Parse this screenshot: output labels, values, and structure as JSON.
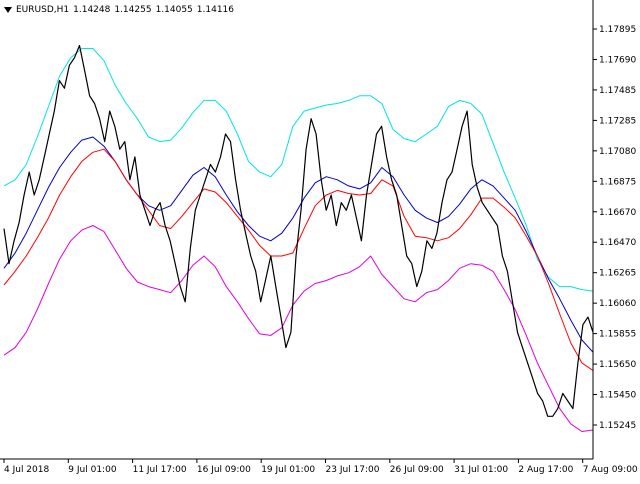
{
  "header": {
    "symbol": "EURUSD,H1",
    "open": "1.14248",
    "high": "1.14255",
    "low": "1.14055",
    "close": "1.14116"
  },
  "colors": {
    "price": "#000000",
    "ma": "#ff0000",
    "band_mid": "#0000cc",
    "band_upper": "#00e5e5",
    "band_lower": "#e000e0",
    "axis": "#000000",
    "background": "#ffffff"
  },
  "chart_data": {
    "type": "line",
    "ylim": [
      1.1517,
      1.1806
    ],
    "y_ticks": [
      "1.17895",
      "1.17690",
      "1.17485",
      "1.17285",
      "1.17080",
      "1.16875",
      "1.16670",
      "1.16470",
      "1.16265",
      "1.16060",
      "1.15855",
      "1.15650",
      "1.15450",
      "1.15245"
    ],
    "x_ticks": [
      "4 Jul 2018",
      "9 Jul 01:00",
      "11 Jul 17:00",
      "16 Jul 09:00",
      "19 Jul 01:00",
      "23 Jul 17:00",
      "26 Jul 09:00",
      "31 Jul 01:00",
      "2 Aug 17:00",
      "7 Aug 09:00"
    ],
    "series": [
      {
        "key": "price",
        "values": [
          1.1668,
          1.1645,
          1.166,
          1.1672,
          1.169,
          1.1705,
          1.169,
          1.17,
          1.1715,
          1.173,
          1.1745,
          1.1765,
          1.176,
          1.1775,
          1.178,
          1.1788,
          1.1772,
          1.1755,
          1.175,
          1.174,
          1.1725,
          1.1745,
          1.1735,
          1.172,
          1.1725,
          1.17,
          1.1715,
          1.169,
          1.168,
          1.167,
          1.168,
          1.1685,
          1.167,
          1.166,
          1.1645,
          1.163,
          1.162,
          1.1655,
          1.168,
          1.169,
          1.17,
          1.171,
          1.1705,
          1.1715,
          1.173,
          1.1725,
          1.17,
          1.168,
          1.1665,
          1.165,
          1.164,
          1.162,
          1.1635,
          1.165,
          1.163,
          1.161,
          1.159,
          1.16,
          1.165,
          1.168,
          1.172,
          1.174,
          1.173,
          1.17,
          1.168,
          1.169,
          1.167,
          1.1685,
          1.168,
          1.169,
          1.1675,
          1.166,
          1.169,
          1.171,
          1.173,
          1.1735,
          1.1715,
          1.17,
          1.169,
          1.167,
          1.165,
          1.1645,
          1.163,
          1.164,
          1.166,
          1.1655,
          1.1665,
          1.1685,
          1.17,
          1.1705,
          1.172,
          1.1735,
          1.1745,
          1.171,
          1.1695,
          1.1685,
          1.168,
          1.1675,
          1.167,
          1.165,
          1.164,
          1.162,
          1.16,
          1.159,
          1.158,
          1.157,
          1.156,
          1.1555,
          1.1545,
          1.1545,
          1.155,
          1.156,
          1.1555,
          1.155,
          1.158,
          1.1605,
          1.161,
          1.16
        ]
      },
      {
        "key": "ma",
        "values": [
          1.1631,
          1.164,
          1.165,
          1.1662,
          1.1675,
          1.169,
          1.1702,
          1.1712,
          1.1718,
          1.172,
          1.1712,
          1.17,
          1.169,
          1.168,
          1.167,
          1.1668,
          1.1676,
          1.1685,
          1.1694,
          1.1692,
          1.1685,
          1.1676,
          1.1667,
          1.1657,
          1.165,
          1.165,
          1.1652,
          1.1668,
          1.1683,
          1.169,
          1.1693,
          1.1691,
          1.169,
          1.1691,
          1.17,
          1.1696,
          1.1676,
          1.1663,
          1.1662,
          1.166,
          1.1662,
          1.1668,
          1.1677,
          1.1688,
          1.1688,
          1.1682,
          1.1675,
          1.1663,
          1.165,
          1.1632,
          1.1612,
          1.1593,
          1.158,
          1.1575
        ]
      },
      {
        "key": "band_mid",
        "values": [
          1.1642,
          1.1652,
          1.1665,
          1.168,
          1.1695,
          1.1708,
          1.1718,
          1.1726,
          1.1728,
          1.1722,
          1.1712,
          1.17,
          1.169,
          1.1683,
          1.168,
          1.1683,
          1.1693,
          1.1703,
          1.1708,
          1.1702,
          1.169,
          1.1679,
          1.167,
          1.1663,
          1.166,
          1.1665,
          1.1675,
          1.1688,
          1.1698,
          1.1702,
          1.17,
          1.1696,
          1.1694,
          1.1698,
          1.1708,
          1.1702,
          1.169,
          1.168,
          1.1675,
          1.1672,
          1.1676,
          1.1684,
          1.1694,
          1.17,
          1.1696,
          1.1688,
          1.168,
          1.1666,
          1.165,
          1.1635,
          1.1622,
          1.1608,
          1.1595,
          1.1587
        ]
      },
      {
        "key": "band_upper",
        "values": [
          1.1696,
          1.17,
          1.171,
          1.1728,
          1.1748,
          1.1768,
          1.178,
          1.1786,
          1.1786,
          1.1778,
          1.1762,
          1.175,
          1.174,
          1.1728,
          1.1725,
          1.1726,
          1.1734,
          1.1744,
          1.1752,
          1.1752,
          1.1745,
          1.173,
          1.1712,
          1.1705,
          1.1702,
          1.171,
          1.1735,
          1.1745,
          1.1747,
          1.1749,
          1.175,
          1.1752,
          1.1755,
          1.1755,
          1.175,
          1.1733,
          1.1727,
          1.1725,
          1.173,
          1.1735,
          1.1748,
          1.1752,
          1.175,
          1.1743,
          1.1724,
          1.1705,
          1.1688,
          1.167,
          1.1648,
          1.1636,
          1.163,
          1.163,
          1.1628,
          1.1627
        ]
      },
      {
        "key": "band_lower",
        "values": [
          1.1585,
          1.159,
          1.16,
          1.1615,
          1.1632,
          1.1648,
          1.166,
          1.1667,
          1.167,
          1.1666,
          1.1654,
          1.1642,
          1.1633,
          1.163,
          1.1628,
          1.1626,
          1.1634,
          1.1644,
          1.165,
          1.1643,
          1.163,
          1.162,
          1.1609,
          1.1599,
          1.1598,
          1.1603,
          1.1618,
          1.1627,
          1.1632,
          1.1634,
          1.1637,
          1.1639,
          1.1643,
          1.165,
          1.1638,
          1.163,
          1.1622,
          1.162,
          1.1626,
          1.1628,
          1.1634,
          1.1642,
          1.1645,
          1.1644,
          1.164,
          1.1628,
          1.1615,
          1.1598,
          1.158,
          1.1565,
          1.155,
          1.154,
          1.1535,
          1.1536
        ]
      }
    ]
  }
}
